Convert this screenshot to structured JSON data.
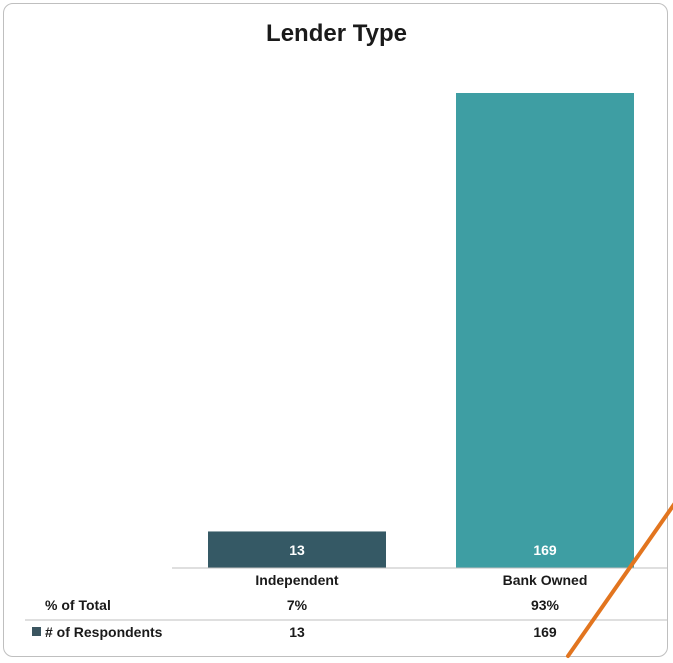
{
  "colors": {
    "independent_bar": "#355965",
    "bank_owned_bar": "#3e9ea3",
    "legend_swatch": "#3b5560",
    "annotation_line": "#e2751f"
  },
  "chart_data": {
    "type": "bar",
    "title": "Lender Type",
    "xlabel": "",
    "ylabel": "",
    "ylim": [
      0,
      169
    ],
    "categories": [
      "Independent",
      "Bank Owned"
    ],
    "series": [
      {
        "name": "# of Respondents",
        "values": [
          13,
          169
        ],
        "data_labels": [
          "13",
          "169"
        ],
        "colors": [
          "#355965",
          "#3e9ea3"
        ]
      }
    ],
    "data_table": {
      "rows": [
        {
          "label": "% of Total",
          "values": [
            "7%",
            "93%"
          ]
        },
        {
          "label": "# of Respondents",
          "values": [
            "13",
            "169"
          ],
          "legend_swatch": true
        }
      ]
    },
    "grid": false,
    "legend": "data-table"
  }
}
